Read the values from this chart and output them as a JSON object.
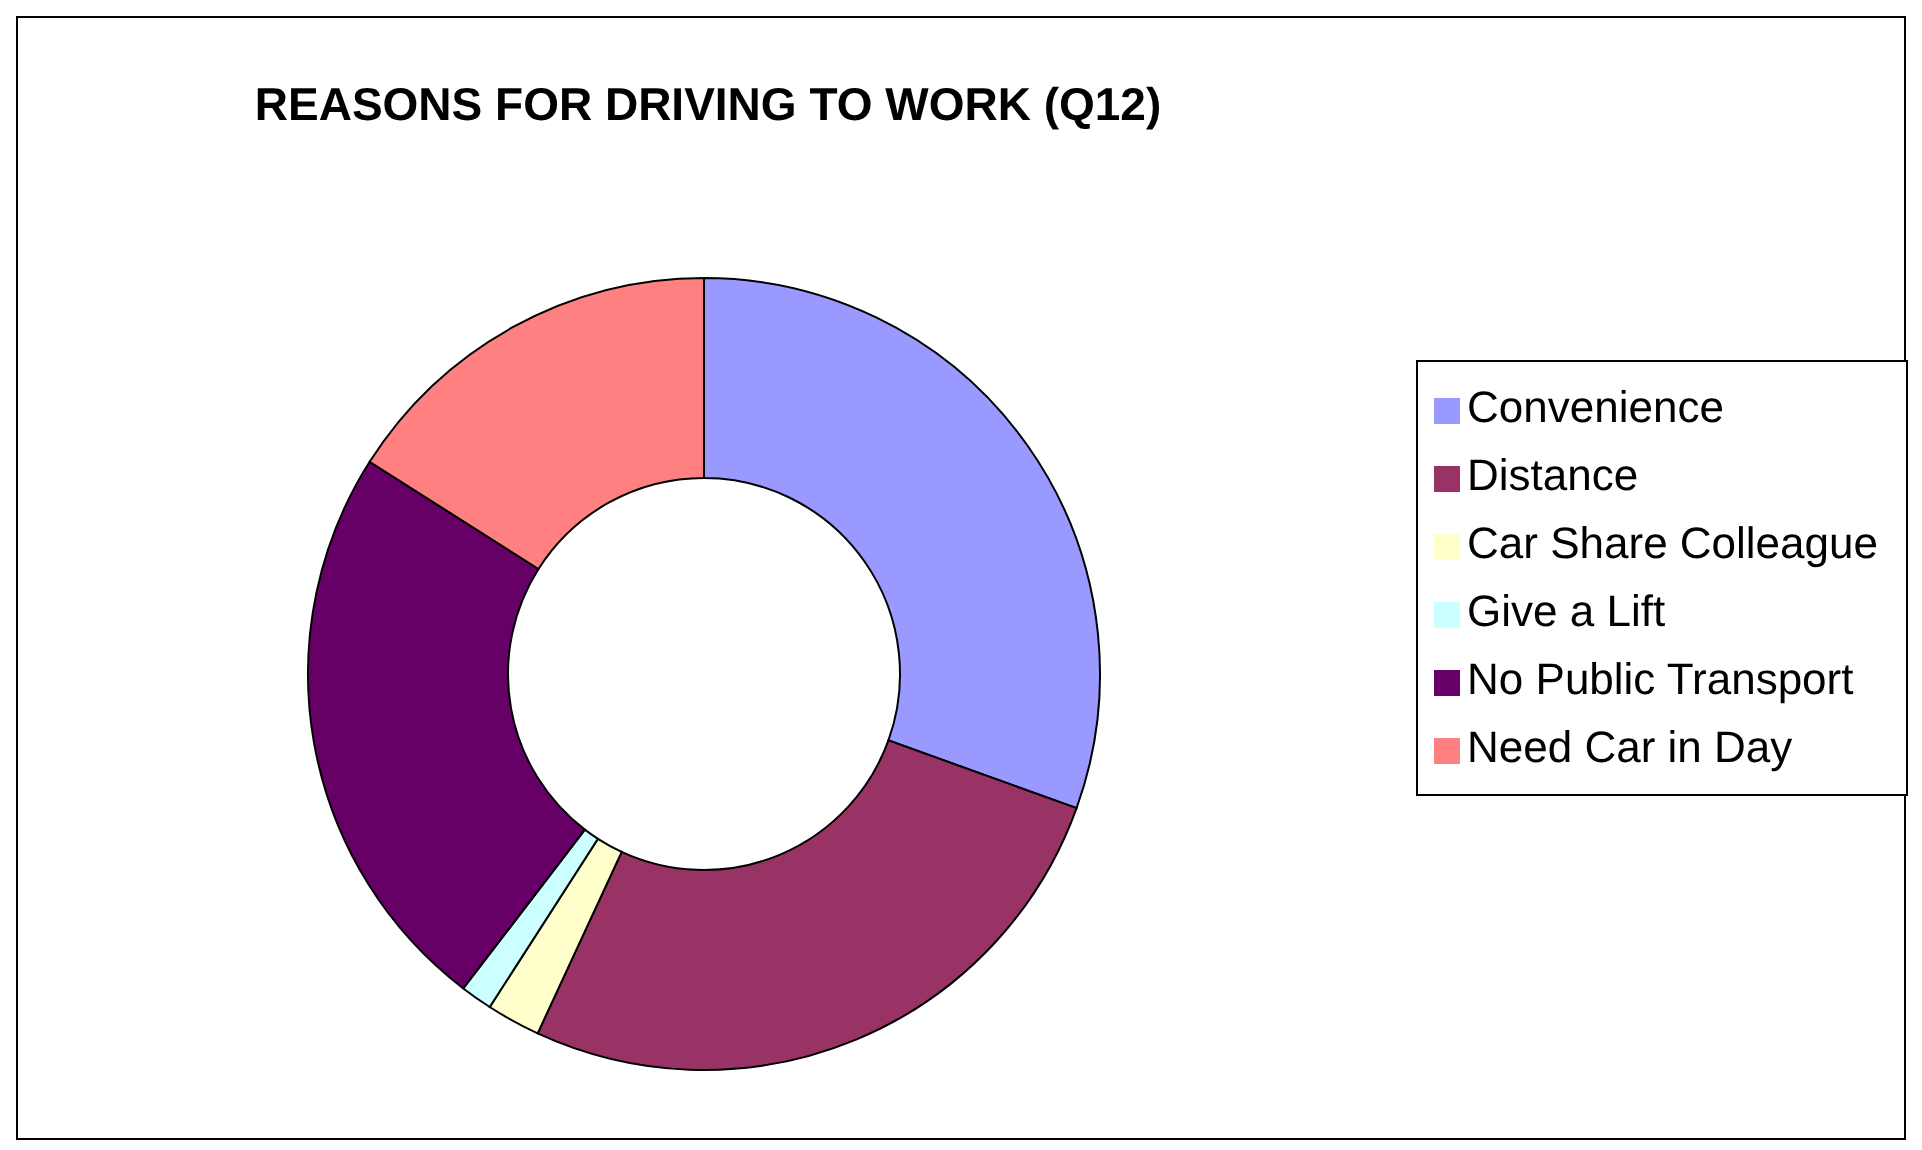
{
  "chart_data": {
    "type": "donut",
    "title": "REASONS FOR DRIVING TO WORK (Q12)",
    "categories": [
      "Convenience",
      "Distance",
      "Car Share Colleague",
      "Give a Lift",
      "No Public Transport",
      "Need Car in Day"
    ],
    "values": [
      30.5,
      26.4,
      2.2,
      1.3,
      23.6,
      16.0
    ],
    "colors": [
      "#9999ff",
      "#993366",
      "#ffffcc",
      "#ccffff",
      "#660066",
      "#ff8080"
    ],
    "legend": "right"
  }
}
